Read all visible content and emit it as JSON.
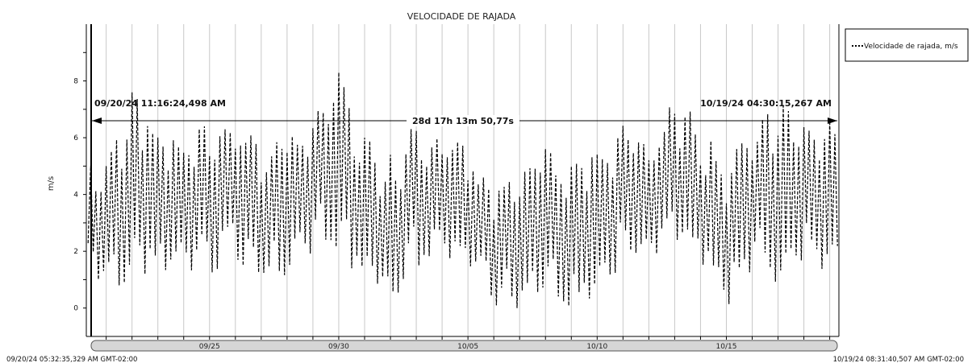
{
  "chart_data": {
    "type": "line",
    "title": "VELOCIDADE DE RAJADA",
    "ylabel": "m/s",
    "xlabel": "",
    "ylim": [
      -1,
      10
    ],
    "y_ticks": [
      0,
      2,
      4,
      6,
      8
    ],
    "x_tick_labels": [
      "09/25",
      "09/30",
      "10/05",
      "10/10",
      "10/15"
    ],
    "x_tick_dates": [
      "2024-09-25",
      "2024-09-30",
      "2024-10-05",
      "2024-10-10",
      "2024-10-15"
    ],
    "x_range": [
      "2024-09-20T05:32:35",
      "2024-10-19T08:31:40"
    ],
    "grid": "vertical, daily",
    "legend": {
      "placement": "top-right",
      "entries": [
        "Velocidade de rajada, m/s"
      ]
    },
    "series": [
      {
        "name": "Velocidade de rajada, m/s",
        "line_style": "dashed",
        "color": "#000000",
        "x": [
          "2024-09-20",
          "2024-09-21",
          "2024-09-22",
          "2024-09-23",
          "2024-09-24",
          "2024-09-25",
          "2024-09-26",
          "2024-09-27",
          "2024-09-28",
          "2024-09-29",
          "2024-09-30",
          "2024-10-01",
          "2024-10-02",
          "2024-10-03",
          "2024-10-04",
          "2024-10-05",
          "2024-10-06",
          "2024-10-07",
          "2024-10-08",
          "2024-10-09",
          "2024-10-10",
          "2024-10-11",
          "2024-10-12",
          "2024-10-13",
          "2024-10-14",
          "2024-10-15",
          "2024-10-16",
          "2024-10-17",
          "2024-10-18",
          "2024-10-19"
        ],
        "min": [
          1.8,
          0.6,
          1.0,
          1.4,
          1.2,
          1.2,
          1.8,
          0.8,
          1.2,
          2.0,
          1.8,
          1.0,
          0.0,
          1.4,
          1.8,
          1.2,
          0.0,
          0.0,
          0.8,
          0.0,
          0.4,
          1.6,
          1.8,
          2.2,
          1.6,
          0.0,
          1.4,
          0.6,
          1.8,
          1.2
        ],
        "max": [
          5.2,
          5.0,
          8.1,
          6.4,
          6.0,
          6.5,
          6.8,
          5.6,
          6.0,
          6.6,
          8.3,
          6.0,
          5.4,
          6.9,
          6.2,
          5.6,
          4.2,
          4.6,
          5.6,
          5.0,
          5.8,
          6.6,
          5.8,
          7.7,
          6.4,
          5.2,
          6.2,
          7.3,
          6.4,
          6.6
        ]
      }
    ],
    "annotations": {
      "start_label": "09/20/24 11:16:24,498 AM",
      "end_label": "10/19/24 04:30:15,267 AM",
      "duration_label": "28d 17h 13m 50,77s",
      "arrow_y_value": 6.3
    },
    "footer": {
      "start_time": "09/20/24 05:32:35,329 AM GMT-02:00",
      "end_time": "10/19/24 08:31:40,507 AM GMT-02:00"
    }
  }
}
